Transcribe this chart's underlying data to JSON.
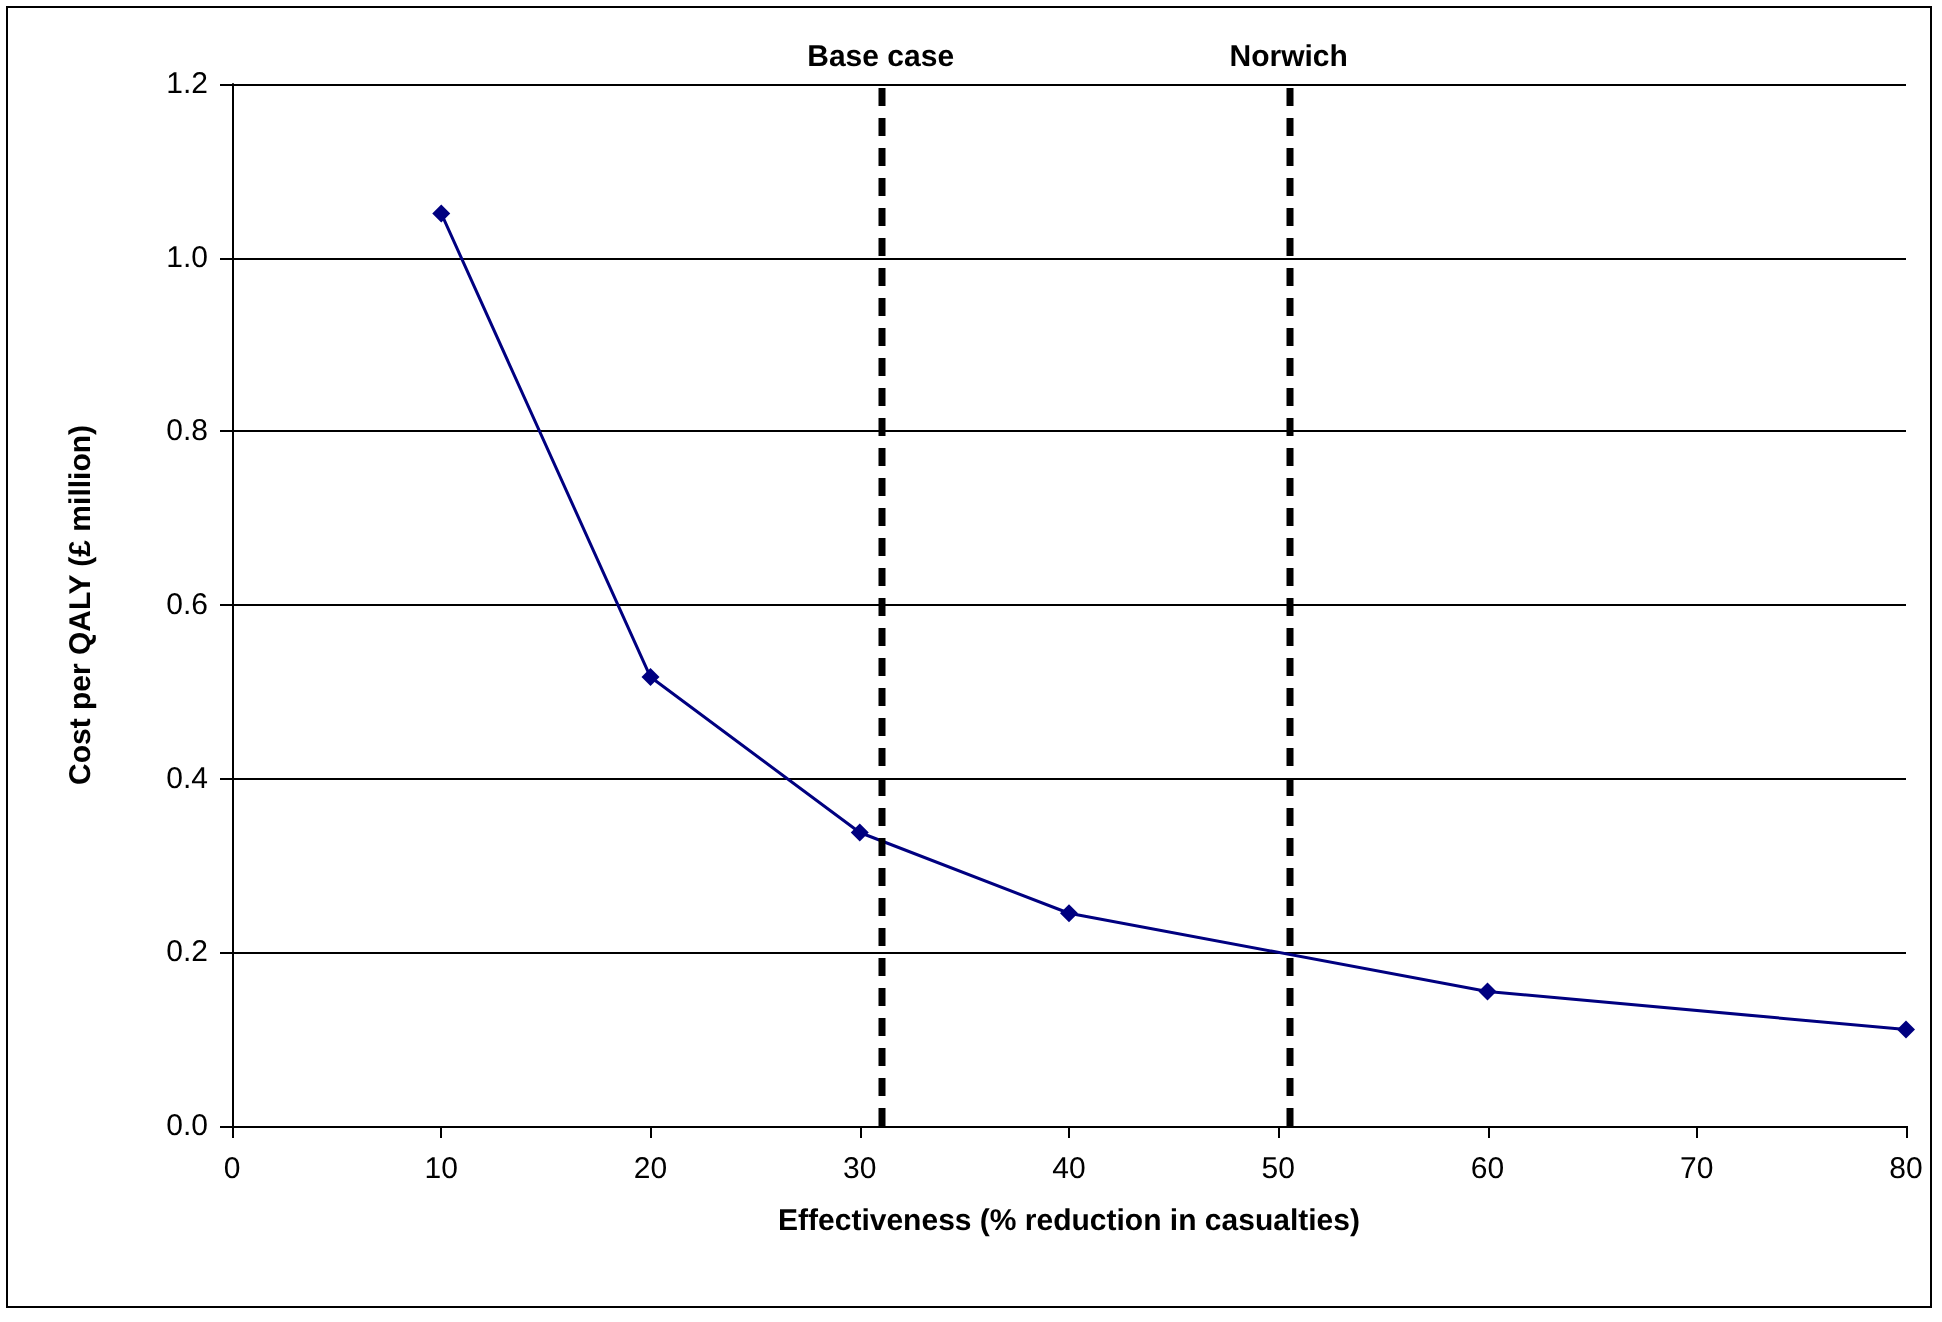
{
  "chart_data": {
    "type": "line",
    "xlabel": "Effectiveness (% reduction in casualties)",
    "ylabel": "Cost per QALY (£ million)",
    "x": [
      10,
      20,
      30,
      40,
      60,
      80
    ],
    "series": [
      {
        "color": "#000080",
        "values": [
          1.051,
          0.517,
          0.338,
          0.245,
          0.155,
          0.111
        ]
      }
    ],
    "xlim": [
      0,
      80
    ],
    "xticks": [
      0,
      10,
      20,
      30,
      40,
      50,
      60,
      70,
      80
    ],
    "ylim": [
      0,
      1.2
    ],
    "yticks": [
      {
        "value": 0,
        "label": "0.0"
      },
      {
        "value": 0.2,
        "label": "0.2"
      },
      {
        "value": 0.4,
        "label": "0.4"
      },
      {
        "value": 0.6,
        "label": "0.6"
      },
      {
        "value": 0.8,
        "label": "0.8"
      },
      {
        "value": 1,
        "label": "1.0"
      },
      {
        "value": 1.2,
        "label": "1.2"
      }
    ],
    "ref_lines": [
      {
        "axis": "x",
        "value": 31,
        "label": "Base case",
        "color": "#000000",
        "line_style": "dashed"
      },
      {
        "axis": "x",
        "value": 50.5,
        "label": "Norwich",
        "color": "#000000",
        "line_style": "dashed"
      }
    ],
    "grid": "y",
    "marker": "diamond",
    "line_style": "solid"
  }
}
